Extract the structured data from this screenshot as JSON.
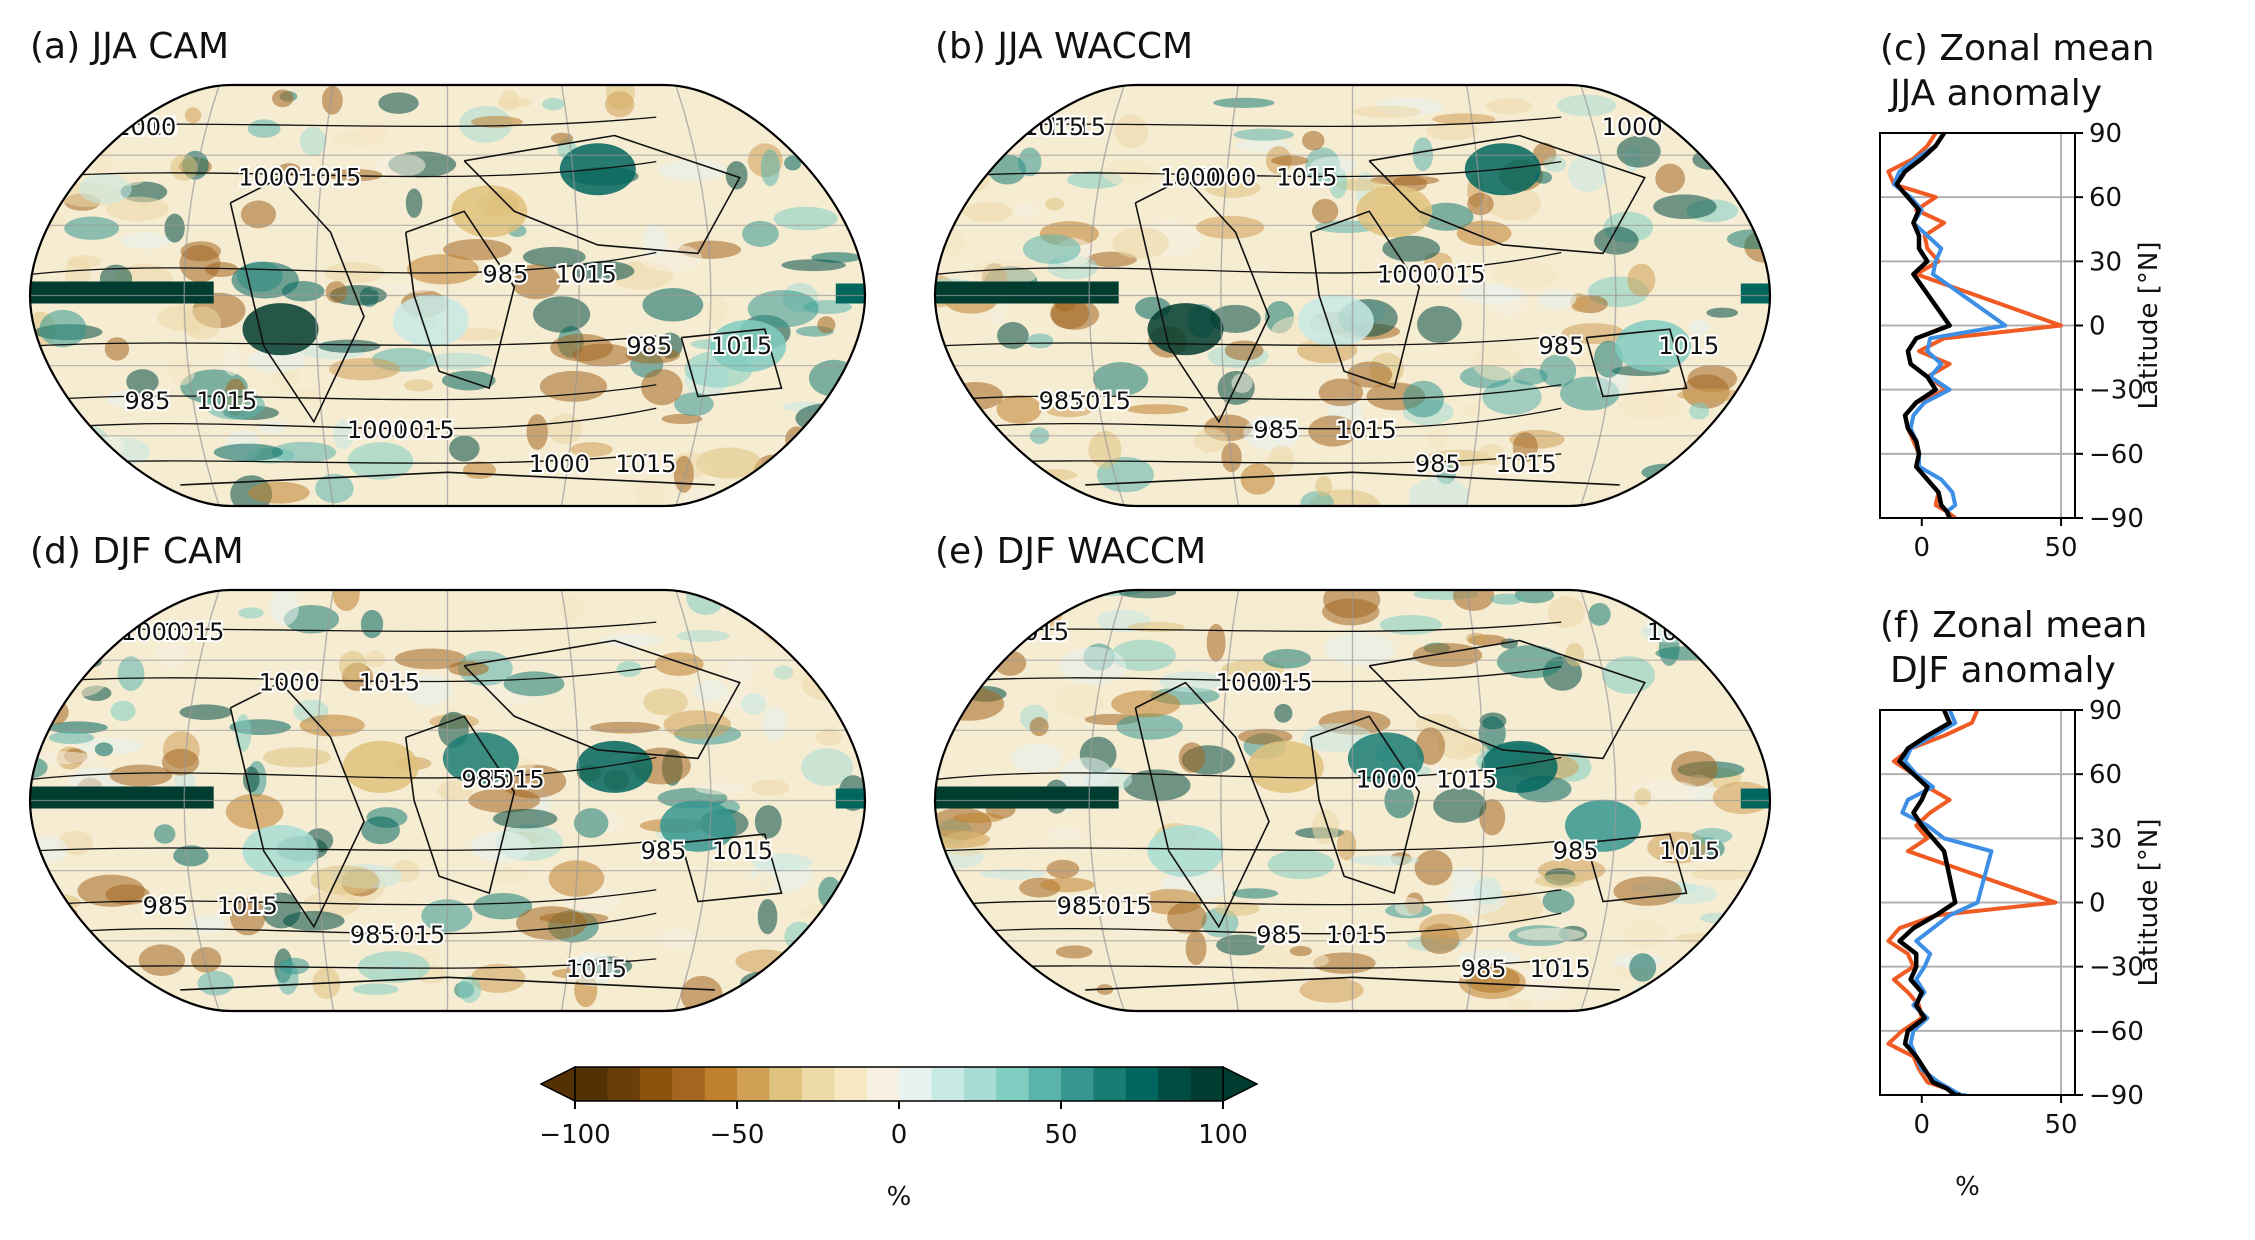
{
  "colorbar": {
    "ticks": [
      "−100",
      "−50",
      "0",
      "50",
      "100"
    ],
    "label": "%",
    "colors": [
      "#543005",
      "#6b3d09",
      "#8c510a",
      "#a36620",
      "#bf812d",
      "#d0a055",
      "#dfc27d",
      "#ecd9a8",
      "#f6e8c3",
      "#f5f0e0",
      "#e6f3f1",
      "#c7eae5",
      "#a8ddd4",
      "#80cdc1",
      "#5ab4ac",
      "#35978f",
      "#1a7d73",
      "#01665e",
      "#014c42",
      "#003c30"
    ]
  },
  "maps": [
    {
      "id": "a",
      "title": "(a) JJA CAM",
      "season": "JJA",
      "model": "CAM",
      "contours": [
        "1015",
        "1015",
        "1015",
        "1015",
        "1015",
        "1015",
        "1015",
        "1000",
        "1000",
        "985",
        "985",
        "985",
        "1000",
        "1000"
      ]
    },
    {
      "id": "b",
      "title": "(b) JJA WACCM",
      "season": "JJA",
      "model": "WACCM",
      "contours": [
        "1015",
        "1015",
        "1015",
        "1015",
        "1015",
        "1015",
        "1015",
        "1015",
        "1000",
        "1000",
        "985",
        "985",
        "985",
        "985",
        "1000",
        "1000"
      ]
    },
    {
      "id": "d",
      "title": "(d) DJF CAM",
      "season": "DJF",
      "model": "CAM",
      "contours": [
        "1015",
        "1015",
        "1015",
        "1015",
        "1015",
        "1015",
        "1015",
        "1000",
        "1000",
        "985",
        "985",
        "985",
        "985"
      ]
    },
    {
      "id": "e",
      "title": "(e) DJF WACCM",
      "season": "DJF",
      "model": "WACCM",
      "contours": [
        "1015",
        "1015",
        "1015",
        "1015",
        "1015",
        "1015",
        "1015",
        "1015",
        "1000",
        "1000",
        "985",
        "985",
        "985",
        "985"
      ]
    }
  ],
  "chart_data": [
    {
      "type": "line",
      "id": "c",
      "title_line1": "(c) Zonal mean",
      "title_line2": "JJA anomaly",
      "xlabel": "",
      "ylabel": "Latitude [°N]",
      "xlim": [
        -15,
        55
      ],
      "ylim": [
        -90,
        90
      ],
      "xticks": [
        "0",
        "50"
      ],
      "yticks": [
        "90",
        "60",
        "30",
        "0",
        "−30",
        "−60",
        "−90"
      ],
      "grid": "horizontal",
      "series": [
        {
          "color": "#f05a23",
          "x": [
            5,
            2,
            -3,
            -12,
            -10,
            5,
            -2,
            8,
            1,
            2,
            6,
            -2,
            50,
            8,
            -1,
            10,
            2,
            9,
            -2,
            -6,
            -5,
            -3,
            -1,
            -2,
            2,
            6,
            5,
            9,
            12,
            10
          ],
          "y": [
            90,
            84,
            78,
            72,
            66,
            60,
            54,
            48,
            42,
            36,
            30,
            24,
            0,
            -6,
            -12,
            -18,
            -24,
            -30,
            -36,
            -42,
            -48,
            -54,
            -60,
            -66,
            -72,
            -78,
            -84,
            -87,
            -90,
            -90
          ]
        },
        {
          "color": "#3d8fe6",
          "x": [
            8,
            5,
            -2,
            -8,
            -10,
            -4,
            0,
            -3,
            2,
            7,
            5,
            4,
            30,
            3,
            2,
            7,
            3,
            10,
            1,
            -3,
            -4,
            -2,
            -1,
            -1,
            7,
            11,
            12,
            9,
            10,
            10
          ],
          "y": [
            90,
            84,
            78,
            72,
            66,
            60,
            54,
            48,
            42,
            36,
            30,
            24,
            0,
            -6,
            -12,
            -18,
            -24,
            -30,
            -36,
            -42,
            -48,
            -54,
            -60,
            -66,
            -72,
            -78,
            -84,
            -87,
            -90,
            -90
          ]
        },
        {
          "color": "#000000",
          "x": [
            8,
            5,
            0,
            -6,
            -9,
            -5,
            -1,
            -3,
            -1,
            -1,
            2,
            -3,
            10,
            -2,
            -5,
            -4,
            2,
            5,
            -2,
            -6,
            -5,
            -2,
            -1,
            -2,
            2,
            6,
            7,
            9,
            10,
            10
          ],
          "y": [
            90,
            84,
            78,
            72,
            66,
            60,
            54,
            48,
            42,
            36,
            30,
            24,
            0,
            -6,
            -12,
            -18,
            -24,
            -30,
            -36,
            -42,
            -48,
            -54,
            -60,
            -66,
            -72,
            -78,
            -84,
            -87,
            -90,
            -90
          ]
        }
      ]
    },
    {
      "type": "line",
      "id": "f",
      "title_line1": "(f) Zonal mean",
      "title_line2": "DJF anomaly",
      "xlabel": "%",
      "ylabel": "Latitude [°N]",
      "xlim": [
        -15,
        55
      ],
      "ylim": [
        -90,
        90
      ],
      "xticks": [
        "0",
        "50"
      ],
      "yticks": [
        "90",
        "60",
        "30",
        "0",
        "−30",
        "−60",
        "−90"
      ],
      "grid": "horizontal",
      "series": [
        {
          "color": "#f05a23",
          "x": [
            20,
            18,
            8,
            -4,
            -10,
            -3,
            2,
            10,
            3,
            -2,
            2,
            -5,
            48,
            5,
            -8,
            -12,
            -5,
            -3,
            -10,
            -5,
            -1,
            0,
            -7,
            -12,
            -3,
            -1,
            2,
            9,
            12,
            14
          ],
          "y": [
            90,
            84,
            78,
            72,
            66,
            60,
            54,
            48,
            42,
            36,
            30,
            24,
            0,
            -6,
            -12,
            -18,
            -24,
            -30,
            -36,
            -42,
            -48,
            -54,
            -60,
            -66,
            -72,
            -78,
            -84,
            -87,
            -90,
            -90
          ]
        },
        {
          "color": "#3d8fe6",
          "x": [
            10,
            12,
            4,
            -4,
            -6,
            -2,
            4,
            -5,
            -7,
            2,
            8,
            25,
            20,
            10,
            4,
            -2,
            3,
            1,
            -2,
            1,
            -3,
            2,
            -3,
            -4,
            -2,
            0,
            6,
            10,
            14,
            16
          ],
          "y": [
            90,
            84,
            78,
            72,
            66,
            60,
            54,
            48,
            42,
            36,
            30,
            24,
            0,
            -6,
            -12,
            -18,
            -24,
            -30,
            -36,
            -42,
            -48,
            -54,
            -60,
            -66,
            -72,
            -78,
            -84,
            -87,
            -90,
            -90
          ]
        },
        {
          "color": "#000000",
          "x": [
            8,
            10,
            2,
            -5,
            -8,
            -3,
            2,
            0,
            -3,
            0,
            4,
            8,
            12,
            5,
            -3,
            -8,
            -2,
            -2,
            -4,
            0,
            -2,
            1,
            -5,
            -6,
            -2,
            1,
            4,
            9,
            12,
            14
          ],
          "y": [
            90,
            84,
            78,
            72,
            66,
            60,
            54,
            48,
            42,
            36,
            30,
            24,
            0,
            -6,
            -12,
            -18,
            -24,
            -30,
            -36,
            -42,
            -48,
            -54,
            -60,
            -66,
            -72,
            -78,
            -84,
            -87,
            -90,
            -90
          ]
        }
      ]
    }
  ]
}
